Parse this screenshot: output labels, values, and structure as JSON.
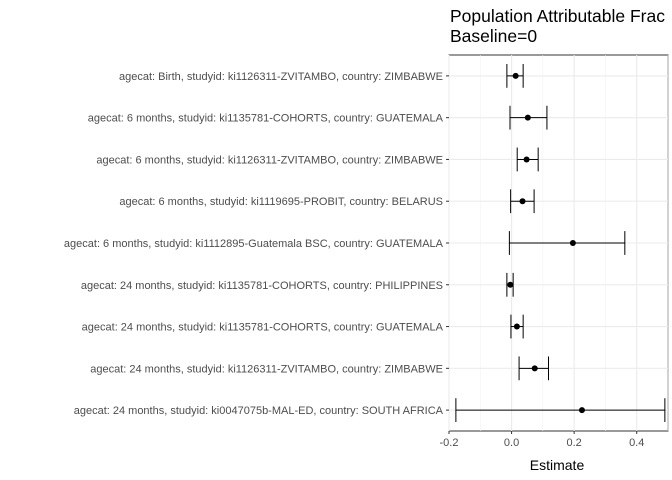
{
  "chart_data": {
    "type": "scatter",
    "title_lines": [
      "Population Attributable Frac",
      "Baseline=0"
    ],
    "xlabel": "Estimate",
    "ylabel": "",
    "xlim": [
      -0.2,
      0.5
    ],
    "x_ticks": [
      -0.2,
      0.0,
      0.2,
      0.4
    ],
    "x_tick_labels": [
      "-0.2",
      "0.0",
      "0.2",
      "0.4"
    ],
    "grid": true,
    "error_bars": true,
    "categories": [
      "agecat: Birth, studyid: ki1126311-ZVITAMBO, country: ZIMBABWE",
      "agecat: 6 months, studyid: ki1135781-COHORTS, country: GUATEMALA",
      "agecat: 6 months, studyid: ki1126311-ZVITAMBO, country: ZIMBABWE",
      "agecat: 6 months, studyid: ki1119695-PROBIT, country: BELARUS",
      "agecat: 6 months, studyid: ki1112895-Guatemala BSC, country: GUATEMALA",
      "agecat: 24 months, studyid: ki1135781-COHORTS, country: PHILIPPINES",
      "agecat: 24 months, studyid: ki1135781-COHORTS, country: GUATEMALA",
      "agecat: 24 months, studyid: ki1126311-ZVITAMBO, country: ZIMBABWE",
      "agecat: 24 months, studyid: ki0047075b-MAL-ED, country: SOUTH AFRICA"
    ],
    "estimates": [
      0.013,
      0.052,
      0.048,
      0.035,
      0.196,
      -0.004,
      0.017,
      0.074,
      0.225
    ],
    "lower": [
      -0.015,
      -0.005,
      0.018,
      -0.003,
      -0.007,
      -0.015,
      -0.002,
      0.024,
      -0.178
    ],
    "upper": [
      0.037,
      0.113,
      0.085,
      0.072,
      0.362,
      0.005,
      0.037,
      0.118,
      0.49
    ]
  }
}
